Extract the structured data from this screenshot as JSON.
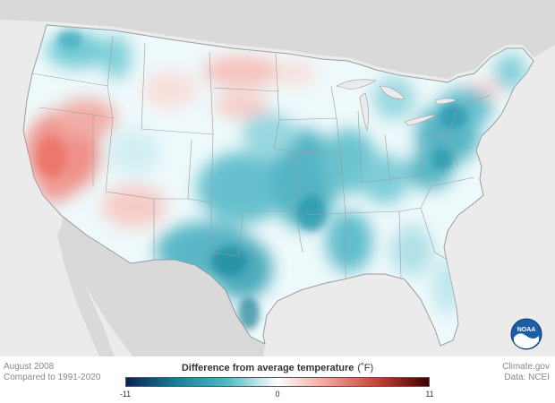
{
  "map": {
    "period": "August 2008",
    "baseline": "Compared to 1991-2020",
    "credit_site": "Climate.gov",
    "credit_data": "Data: NCEI",
    "logo_text": "NOAA",
    "legend": {
      "title": "Difference from average temperature",
      "unit": "(˚F)",
      "min_label": "-11",
      "mid_label": "0",
      "max_label": "11",
      "min": -11,
      "max": 11,
      "colors": [
        "#0b2158",
        "#17809a",
        "#4fb9c8",
        "#ffffff",
        "#f2a098",
        "#c8402f",
        "#3d0000"
      ]
    },
    "background_color": "#ebebeb",
    "land_color": "#d9d9d9",
    "base_color": "#eef9fb"
  }
}
